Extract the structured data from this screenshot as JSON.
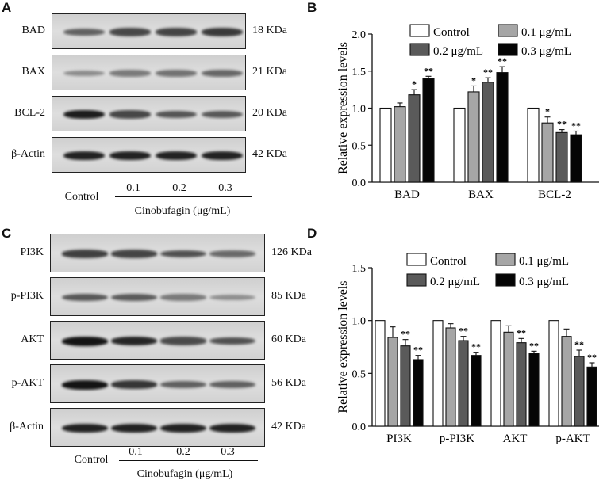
{
  "panel_labels": {
    "a": "A",
    "b": "B",
    "c": "C",
    "d": "D"
  },
  "blot_a": {
    "rows": [
      {
        "label": "BAD",
        "kda": "18 KDa",
        "intensity": [
          0.55,
          0.7,
          0.72,
          0.78
        ]
      },
      {
        "label": "BAX",
        "kda": "21 KDa",
        "intensity": [
          0.3,
          0.4,
          0.45,
          0.52
        ]
      },
      {
        "label": "BCL-2",
        "kda": "20 KDa",
        "intensity": [
          0.95,
          0.7,
          0.62,
          0.6
        ]
      },
      {
        "label": "β-Actin",
        "kda": "42 KDa",
        "intensity": [
          0.92,
          0.92,
          0.92,
          0.92
        ]
      }
    ],
    "lanes": [
      "Control",
      "0.1",
      "0.2",
      "0.3"
    ],
    "treatment": "Cinobufagin (μg/mL)"
  },
  "blot_c": {
    "rows": [
      {
        "label": "PI3K",
        "kda": "126 KDa",
        "intensity": [
          0.75,
          0.72,
          0.65,
          0.5
        ]
      },
      {
        "label": "p-PI3K",
        "kda": "85 KDa",
        "intensity": [
          0.6,
          0.58,
          0.4,
          0.28
        ]
      },
      {
        "label": "AKT",
        "kda": "60 KDa",
        "intensity": [
          1.0,
          0.9,
          0.68,
          0.66
        ]
      },
      {
        "label": "p-AKT",
        "kda": "56 KDa",
        "intensity": [
          1.0,
          0.8,
          0.55,
          0.55
        ]
      },
      {
        "label": "β-Actin",
        "kda": "42 KDa",
        "intensity": [
          0.92,
          0.92,
          0.92,
          0.92
        ]
      }
    ],
    "lanes": [
      "Control",
      "0.1",
      "0.2",
      "0.3"
    ],
    "treatment": "Cinobufagin (μg/mL)"
  },
  "chart_data": [
    {
      "panel": "B",
      "type": "bar",
      "ylabel": "Relative expression levels",
      "ylim": [
        0.0,
        2.0
      ],
      "yticks": [
        "0.0",
        "0.5",
        "1.0",
        "1.5",
        "2.0"
      ],
      "categories": [
        "BAD",
        "BAX",
        "BCL-2"
      ],
      "series": [
        {
          "name": "Control",
          "color": "#ffffff",
          "values": [
            1.0,
            1.0,
            1.0
          ],
          "errors": [
            0,
            0,
            0
          ],
          "sig": [
            "",
            "",
            ""
          ]
        },
        {
          "name": "0.1 μg/mL",
          "color": "#a6a6a6",
          "values": [
            1.02,
            1.22,
            0.8
          ],
          "errors": [
            0.05,
            0.08,
            0.08
          ],
          "sig": [
            "",
            "*",
            "*"
          ]
        },
        {
          "name": "0.2 μg/mL",
          "color": "#5a5a5a",
          "values": [
            1.18,
            1.35,
            0.67
          ],
          "errors": [
            0.07,
            0.06,
            0.04
          ],
          "sig": [
            "*",
            "**",
            "**"
          ]
        },
        {
          "name": "0.3 μg/mL",
          "color": "#050505",
          "values": [
            1.4,
            1.48,
            0.64
          ],
          "errors": [
            0.03,
            0.08,
            0.05
          ],
          "sig": [
            "**",
            "**",
            "**"
          ]
        }
      ],
      "legend": "top"
    },
    {
      "panel": "D",
      "type": "bar",
      "ylabel": "Relative expression levels",
      "ylim": [
        0.0,
        1.5
      ],
      "yticks": [
        "0.0",
        "0.5",
        "1.0",
        "1.5"
      ],
      "categories": [
        "PI3K",
        "p-PI3K",
        "AKT",
        "p-AKT"
      ],
      "series": [
        {
          "name": "Control",
          "color": "#ffffff",
          "values": [
            1.0,
            1.0,
            1.0,
            1.0
          ],
          "errors": [
            0,
            0,
            0,
            0
          ],
          "sig": [
            "",
            "",
            "",
            ""
          ]
        },
        {
          "name": "0.1 μg/mL",
          "color": "#a6a6a6",
          "values": [
            0.84,
            0.93,
            0.89,
            0.85
          ],
          "errors": [
            0.1,
            0.04,
            0.06,
            0.07
          ],
          "sig": [
            "",
            "",
            "",
            ""
          ]
        },
        {
          "name": "0.2 μg/mL",
          "color": "#5a5a5a",
          "values": [
            0.76,
            0.81,
            0.79,
            0.66
          ],
          "errors": [
            0.06,
            0.04,
            0.04,
            0.06
          ],
          "sig": [
            "**",
            "**",
            "**",
            "**"
          ]
        },
        {
          "name": "0.3 μg/mL",
          "color": "#050505",
          "values": [
            0.63,
            0.67,
            0.69,
            0.56
          ],
          "errors": [
            0.04,
            0.03,
            0.02,
            0.04
          ],
          "sig": [
            "**",
            "**",
            "**",
            "**"
          ]
        }
      ],
      "legend": "top"
    }
  ]
}
